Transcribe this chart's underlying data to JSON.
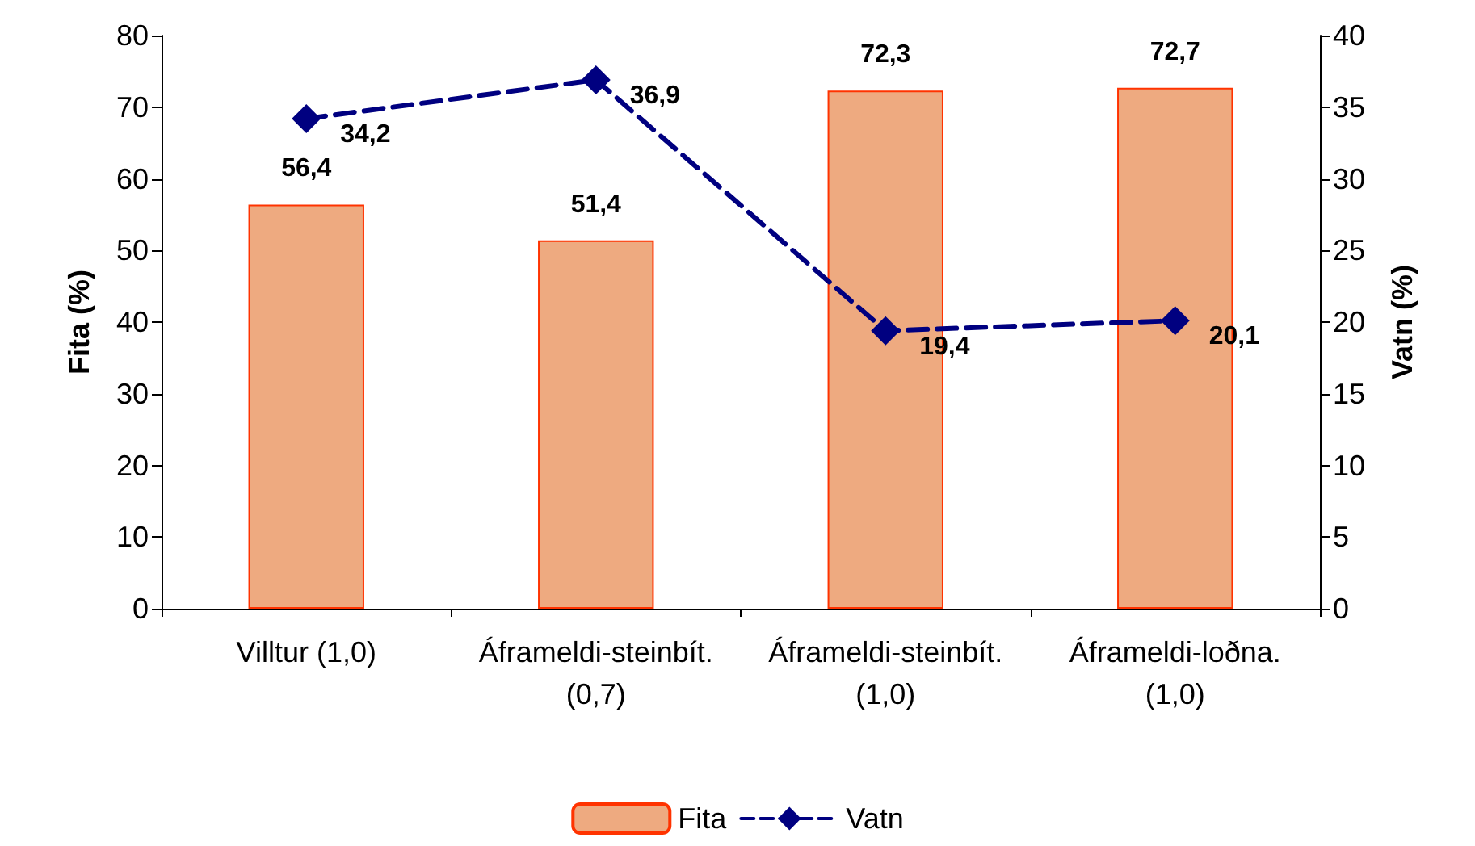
{
  "chart_data": {
    "type": "bar",
    "categories": [
      "Villtur (1,0)",
      "Áframeldi-steinbít. (0,7)",
      "Áframeldi-steinbít. (1,0)",
      "Áframeldi-loðna. (1,0)"
    ],
    "series": [
      {
        "name": "Fita",
        "color": "#eeaa80",
        "values": [
          56.4,
          51.4,
          72.3,
          72.7
        ],
        "value_labels": [
          "56,4",
          "51,4",
          "72,3",
          "72,7"
        ]
      },
      {
        "name": "Vatn",
        "type": "line",
        "axis": "y2",
        "color": "#000080",
        "values": [
          34.2,
          36.9,
          19.4,
          20.1
        ],
        "value_labels": [
          "34,2",
          "36,9",
          "19,4",
          "20,1"
        ],
        "marker": "diamond",
        "line_style": "dashed"
      }
    ],
    "ylabel": "Fita (%)",
    "y2label": "Vatn (%)",
    "ylim": [
      0,
      80
    ],
    "yticks": [
      0,
      10,
      20,
      30,
      40,
      50,
      60,
      70,
      80
    ],
    "y2lim": [
      0,
      40
    ],
    "y2ticks": [
      0,
      5,
      10,
      15,
      20,
      25,
      30,
      35,
      40
    ],
    "grid": false,
    "legend": "bottom"
  }
}
